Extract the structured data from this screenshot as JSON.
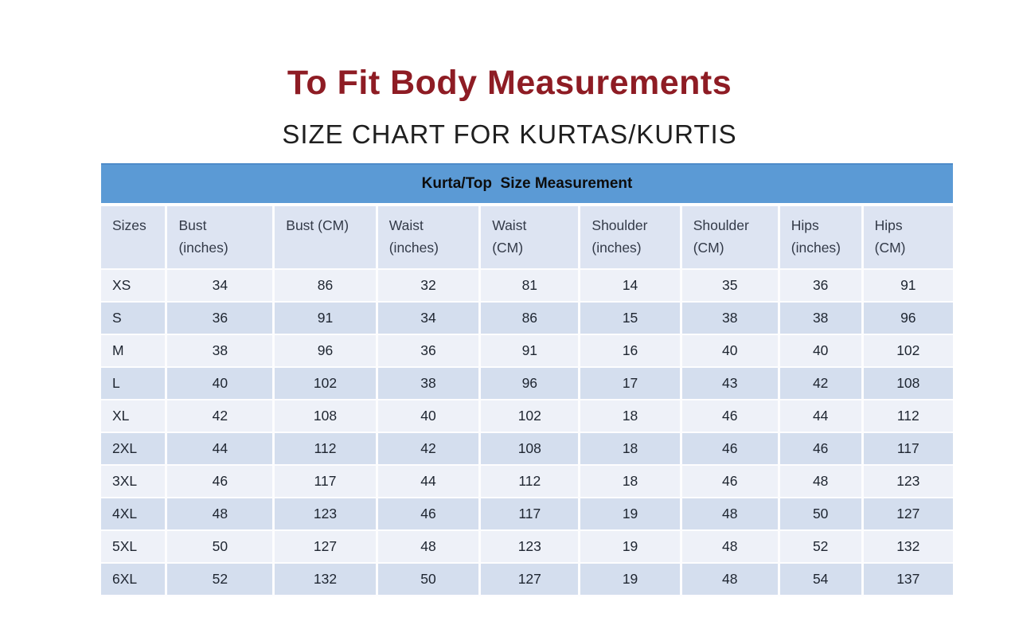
{
  "page": {
    "title": "To Fit Body Measurements",
    "subtitle": "SIZE CHART FOR KURTAS/KURTIS"
  },
  "table": {
    "band_title": "Kurta/Top  Size Measurement",
    "header_lines": [
      {
        "line1": "Sizes",
        "line2": ""
      },
      {
        "line1": "Bust",
        "line2": "(inches)"
      },
      {
        "line1": "Bust (CM)",
        "line2": ""
      },
      {
        "line1": "Waist",
        "line2": "(inches)"
      },
      {
        "line1": "Waist",
        "line2": "(CM)"
      },
      {
        "line1": "Shoulder",
        "line2": "(inches)"
      },
      {
        "line1": "Shoulder",
        "line2": "(CM)"
      },
      {
        "line1": "Hips",
        "line2": "(inches)"
      },
      {
        "line1": "Hips",
        "line2": "(CM)"
      }
    ]
  },
  "chart_data": {
    "type": "table",
    "title": "Kurta/Top Size Measurement",
    "columns": [
      "Sizes",
      "Bust (inches)",
      "Bust (CM)",
      "Waist (inches)",
      "Waist (CM)",
      "Shoulder (inches)",
      "Shoulder (CM)",
      "Hips (inches)",
      "Hips (CM)"
    ],
    "rows": [
      [
        "XS",
        34,
        86,
        32,
        81,
        14,
        35,
        36,
        91
      ],
      [
        "S",
        36,
        91,
        34,
        86,
        15,
        38,
        38,
        96
      ],
      [
        "M",
        38,
        96,
        36,
        91,
        16,
        40,
        40,
        102
      ],
      [
        "L",
        40,
        102,
        38,
        96,
        17,
        43,
        42,
        108
      ],
      [
        "XL",
        42,
        108,
        40,
        102,
        18,
        46,
        44,
        112
      ],
      [
        "2XL",
        44,
        112,
        42,
        108,
        18,
        46,
        46,
        117
      ],
      [
        "3XL",
        46,
        117,
        44,
        112,
        18,
        46,
        48,
        123
      ],
      [
        "4XL",
        48,
        123,
        46,
        117,
        19,
        48,
        50,
        127
      ],
      [
        "5XL",
        50,
        127,
        48,
        123,
        19,
        48,
        52,
        132
      ],
      [
        "6XL",
        52,
        132,
        50,
        127,
        19,
        48,
        54,
        137
      ]
    ]
  },
  "colors": {
    "title_maroon": "#8e1c24",
    "band_blue": "#5b9ad5",
    "header_row_bg": "#dde4f2",
    "row_light": "#eef1f8",
    "row_dark": "#d4deee",
    "cell_text": "#1e2530"
  }
}
